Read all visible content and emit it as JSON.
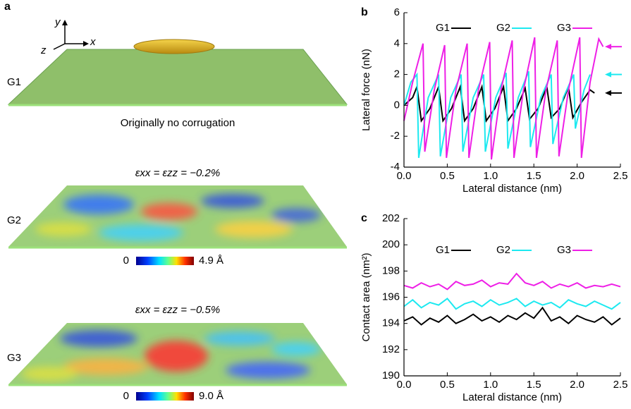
{
  "panel_a": {
    "letter": "a",
    "axis_y": "y",
    "axis_x": "x",
    "axis_z": "z",
    "g1_label": "G1",
    "g1_caption": "Originally no corrugation",
    "g2_strain": "εxx = εzz = −0.2%",
    "g2_label": "G2",
    "g2_scale_min": "0",
    "g2_scale_max": "4.9 Å",
    "g3_strain": "εxx = εzz = −0.5%",
    "g3_label": "G3",
    "g3_scale_min": "0",
    "g3_scale_max": "9.0 Å"
  },
  "chart_data": [
    {
      "type": "line",
      "letter": "b",
      "xlabel": "Lateral distance (nm)",
      "ylabel": "Lateral force (nN)",
      "xlim": [
        0,
        2.5
      ],
      "ylim": [
        -4,
        6
      ],
      "xticks": [
        {
          "value": 0,
          "label": "0.0"
        },
        0.5,
        {
          "value": 1,
          "label": "1.0"
        },
        1.5,
        {
          "value": 2,
          "label": "2.0"
        },
        2.5
      ],
      "yticks": [
        -4,
        -2,
        0,
        2,
        4,
        6
      ],
      "series": [
        {
          "name": "G1",
          "color": "#000000",
          "x": [
            0,
            0.1,
            0.15,
            0.2,
            0.3,
            0.4,
            0.45,
            0.55,
            0.65,
            0.7,
            0.8,
            0.9,
            0.95,
            1.05,
            1.15,
            1.2,
            1.3,
            1.4,
            1.45,
            1.55,
            1.65,
            1.7,
            1.8,
            1.9,
            1.95,
            2.05,
            2.15,
            2.2
          ],
          "values": [
            0,
            0.5,
            1.2,
            -1.0,
            -0.2,
            1.2,
            -1.0,
            -0.2,
            1.2,
            -1.0,
            -0.2,
            1.2,
            -1.0,
            -0.2,
            1.2,
            -1.0,
            -0.2,
            1.1,
            -0.9,
            -0.2,
            1.2,
            -0.8,
            -0.2,
            1.2,
            -0.8,
            0.2,
            1.0,
            0.8
          ]
        },
        {
          "name": "G2",
          "color": "#1de9f0",
          "x": [
            0,
            0.08,
            0.15,
            0.17,
            0.28,
            0.4,
            0.42,
            0.54,
            0.66,
            0.68,
            0.8,
            0.92,
            0.94,
            1.06,
            1.18,
            1.2,
            1.32,
            1.44,
            1.46,
            1.58,
            1.7,
            1.72,
            1.84,
            1.96,
            1.98,
            2.08,
            2.15
          ],
          "values": [
            0,
            1.5,
            2.0,
            -3.4,
            0.5,
            2.0,
            -3.3,
            0.5,
            2.0,
            -3.0,
            0.5,
            2.0,
            -3.0,
            0.5,
            2.1,
            -2.8,
            0.5,
            2.2,
            -2.7,
            0.5,
            2.0,
            -2.5,
            0.5,
            2.0,
            -1.5,
            1.0,
            2.0
          ]
        },
        {
          "name": "G3",
          "color": "#ee1fe6",
          "x": [
            0,
            0.1,
            0.22,
            0.24,
            0.35,
            0.47,
            0.49,
            0.6,
            0.73,
            0.75,
            0.86,
            0.99,
            1.01,
            1.12,
            1.25,
            1.27,
            1.38,
            1.51,
            1.53,
            1.64,
            1.77,
            1.79,
            1.9,
            2.03,
            2.05,
            2.15,
            2.25,
            2.3
          ],
          "values": [
            -1.0,
            1.5,
            4.0,
            -3.0,
            1.0,
            3.9,
            -3.4,
            1.0,
            4.0,
            -3.4,
            1.0,
            4.1,
            -3.5,
            1.0,
            4.2,
            -3.4,
            1.0,
            4.4,
            -3.4,
            1.0,
            4.2,
            -3.3,
            1.0,
            4.4,
            -3.4,
            1.5,
            4.3,
            3.8
          ]
        }
      ]
    },
    {
      "type": "line",
      "letter": "c",
      "xlabel": "Lateral distance (nm)",
      "ylabel": "Contact area (nm²)",
      "xlim": [
        0,
        2.5
      ],
      "ylim": [
        190,
        202
      ],
      "xticks": [
        {
          "value": 0,
          "label": "0.0"
        },
        0.5,
        {
          "value": 1,
          "label": "1.0"
        },
        1.5,
        {
          "value": 2,
          "label": "2.0"
        },
        2.5
      ],
      "yticks": [
        190,
        192,
        194,
        196,
        198,
        200,
        202
      ],
      "series": [
        {
          "name": "G1",
          "color": "#000000",
          "x": [
            0,
            0.1,
            0.2,
            0.3,
            0.4,
            0.5,
            0.6,
            0.7,
            0.8,
            0.9,
            1.0,
            1.1,
            1.2,
            1.3,
            1.4,
            1.5,
            1.6,
            1.7,
            1.8,
            1.9,
            2.0,
            2.1,
            2.2,
            2.3,
            2.4,
            2.5
          ],
          "values": [
            194.2,
            194.5,
            193.9,
            194.4,
            194.1,
            194.6,
            194.0,
            194.3,
            194.7,
            194.2,
            194.5,
            194.1,
            194.6,
            194.3,
            194.8,
            194.4,
            195.2,
            194.2,
            194.5,
            194.0,
            194.6,
            194.3,
            194.1,
            194.5,
            193.9,
            194.4
          ]
        },
        {
          "name": "G2",
          "color": "#1de9f0",
          "x": [
            0,
            0.1,
            0.2,
            0.3,
            0.4,
            0.5,
            0.6,
            0.7,
            0.8,
            0.9,
            1.0,
            1.1,
            1.2,
            1.3,
            1.4,
            1.5,
            1.6,
            1.7,
            1.8,
            1.9,
            2.0,
            2.1,
            2.2,
            2.3,
            2.4,
            2.5
          ],
          "values": [
            195.3,
            195.8,
            195.2,
            195.6,
            195.4,
            195.9,
            195.1,
            195.5,
            195.7,
            195.3,
            195.8,
            195.4,
            195.6,
            195.9,
            195.3,
            195.7,
            195.4,
            195.6,
            195.2,
            195.8,
            195.5,
            195.3,
            195.7,
            195.4,
            195.1,
            195.6
          ]
        },
        {
          "name": "G3",
          "color": "#ee1fe6",
          "x": [
            0,
            0.1,
            0.2,
            0.3,
            0.4,
            0.5,
            0.6,
            0.7,
            0.8,
            0.9,
            1.0,
            1.1,
            1.2,
            1.3,
            1.4,
            1.5,
            1.6,
            1.7,
            1.8,
            1.9,
            2.0,
            2.1,
            2.2,
            2.3,
            2.4,
            2.5
          ],
          "values": [
            196.9,
            196.7,
            197.1,
            196.8,
            197.0,
            196.6,
            197.2,
            196.9,
            197.0,
            197.3,
            196.8,
            197.1,
            197.0,
            197.8,
            197.1,
            196.9,
            197.2,
            196.7,
            197.0,
            196.8,
            197.1,
            196.7,
            196.9,
            196.8,
            197.0,
            196.8
          ]
        }
      ]
    }
  ]
}
